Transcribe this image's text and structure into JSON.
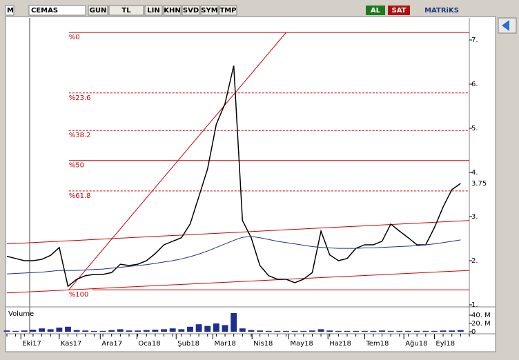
{
  "toolbar": {
    "logo": "M",
    "symbol": "CEMAS",
    "buttons": [
      "GUN",
      "TL",
      "LIN",
      "KHN",
      "SVD",
      "SYM",
      "TMP"
    ],
    "buy": "AL",
    "sell": "SAT",
    "brand": "MATRiKS"
  },
  "chart_data": {
    "type": "line",
    "series": [
      {
        "name": "CEMAS",
        "color": "#000000",
        "values": [
          2.1,
          2.05,
          2.0,
          2.0,
          2.03,
          2.12,
          2.3,
          1.42,
          1.58,
          1.66,
          1.69,
          1.69,
          1.73,
          1.92,
          1.89,
          1.92,
          2.0,
          2.16,
          2.36,
          2.44,
          2.52,
          2.83,
          3.45,
          4.08,
          5.09,
          5.56,
          6.42,
          2.91,
          2.52,
          1.89,
          1.66,
          1.58,
          1.58,
          1.5,
          1.58,
          1.73,
          2.67,
          2.13,
          2.0,
          2.05,
          2.28,
          2.36,
          2.36,
          2.44,
          2.83,
          2.67,
          2.52,
          2.36,
          2.36,
          2.75,
          3.22,
          3.61,
          3.75
        ]
      },
      {
        "color": "#1f2f8f",
        "values": [
          1.7,
          1.71,
          1.72,
          1.73,
          1.74,
          1.76,
          1.78,
          1.78,
          1.78,
          1.79,
          1.8,
          1.81,
          1.83,
          1.85,
          1.87,
          1.89,
          1.91,
          1.94,
          1.97,
          2.0,
          2.04,
          2.09,
          2.15,
          2.22,
          2.3,
          2.38,
          2.46,
          2.53,
          2.55,
          2.52,
          2.48,
          2.44,
          2.41,
          2.38,
          2.35,
          2.32,
          2.3,
          2.29,
          2.28,
          2.28,
          2.28,
          2.29,
          2.29,
          2.3,
          2.31,
          2.32,
          2.33,
          2.34,
          2.36,
          2.38,
          2.41,
          2.44,
          2.47
        ]
      }
    ],
    "xlim": [
      0,
      53
    ],
    "xticks": [
      {
        "value": 1.6,
        "label": "Eki17"
      },
      {
        "value": 6,
        "label": "Kas17"
      },
      {
        "value": 10.7,
        "label": "Ara17"
      },
      {
        "value": 14.9,
        "label": "Oca18"
      },
      {
        "value": 19.4,
        "label": "Şub18"
      },
      {
        "value": 23.6,
        "label": "Mar18"
      },
      {
        "value": 28.1,
        "label": "Nis18"
      },
      {
        "value": 32.3,
        "label": "May18"
      },
      {
        "value": 36.8,
        "label": "Haz18"
      },
      {
        "value": 41,
        "label": "Tem18"
      },
      {
        "value": 45.5,
        "label": "Ağu18"
      },
      {
        "value": 49,
        "label": "Eyl18"
      }
    ],
    "ylim": [
      1,
      7.5
    ],
    "yticks": [
      {
        "value": 7,
        "label": "7."
      },
      {
        "value": 6,
        "label": "6."
      },
      {
        "value": 5,
        "label": "5."
      },
      {
        "value": 4,
        "label": "4."
      },
      {
        "value": 3,
        "label": "3."
      },
      {
        "value": 2,
        "label": "2."
      },
      {
        "value": 1,
        "label": "1."
      }
    ],
    "fib_levels": [
      {
        "label": "%0",
        "value": 7.17
      },
      {
        "label": "%23.6",
        "value": 5.8
      },
      {
        "label": "%38.2",
        "value": 4.95
      },
      {
        "label": "%50",
        "value": 4.27
      },
      {
        "label": "%61.8",
        "value": 3.58
      },
      {
        "label": "%100",
        "value": 1.34
      }
    ],
    "fib_color": "#cc0000",
    "trend_lines": [
      {
        "x": [
          7.1,
          32
        ],
        "y": [
          1.34,
          7.17
        ]
      },
      {
        "x": [
          0,
          53
        ],
        "y": [
          2.38,
          2.91
        ]
      },
      {
        "x": [
          0,
          53
        ],
        "y": [
          1.27,
          1.78
        ]
      }
    ],
    "volume": {
      "label": "Volume",
      "color": "#1f2f8f",
      "values": [
        3,
        2,
        3,
        5,
        8,
        6,
        10,
        12,
        4,
        3,
        2,
        2,
        4,
        6,
        3,
        3,
        4,
        5,
        6,
        8,
        6,
        12,
        18,
        14,
        20,
        16,
        45,
        8,
        4,
        3,
        2,
        2,
        2,
        2,
        2,
        3,
        6,
        3,
        2,
        2,
        2,
        2,
        2,
        3,
        2,
        2,
        2,
        2,
        2,
        2,
        3,
        3,
        4
      ],
      "ylim": [
        0,
        55
      ],
      "yticks": [
        {
          "value": 40,
          "label": "40. M"
        },
        {
          "value": 20,
          "label": "20. M"
        },
        0
      ]
    }
  }
}
